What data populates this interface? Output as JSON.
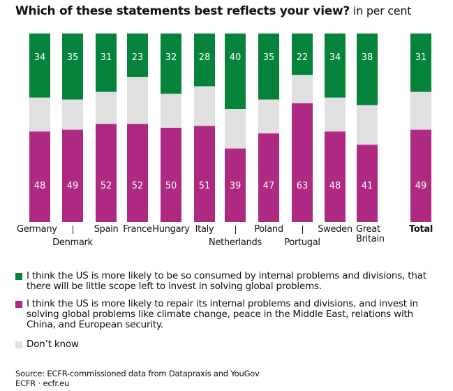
{
  "chart_data": {
    "type": "bar",
    "stacked": true,
    "orientation": "vertical",
    "title": "Which of these statements best reflects your view?",
    "subtitle": "in per cent",
    "categories": [
      "Germany",
      "Denmark",
      "Spain",
      "France",
      "Hungary",
      "Italy",
      "Netherlands",
      "Poland",
      "Portugal",
      "Sweden",
      "Great Britain",
      "Total"
    ],
    "category_label_lines": [
      [
        "Germany"
      ],
      [
        "Denmark"
      ],
      [
        "Spain"
      ],
      [
        "France"
      ],
      [
        "Hungary"
      ],
      [
        "Italy"
      ],
      [
        "Netherlands"
      ],
      [
        "Poland"
      ],
      [
        "Portugal"
      ],
      [
        "Sweden"
      ],
      [
        "Great",
        "Britain"
      ],
      [
        "Total"
      ]
    ],
    "series": [
      {
        "name": "I think the US is more likely to be so consumed by internal problems and divisions, that there will be little scope left to invest in solving global problems.",
        "color": "#05833A",
        "position": "top",
        "show_labels": true,
        "values": [
          34,
          35,
          31,
          23,
          32,
          28,
          40,
          35,
          22,
          34,
          38,
          31
        ]
      },
      {
        "name": "Don’t know",
        "color": "#E0E0E0",
        "position": "middle",
        "show_labels": false,
        "values": [
          18,
          16,
          17,
          25,
          18,
          21,
          21,
          18,
          15,
          18,
          21,
          20
        ]
      },
      {
        "name": "I think the US is more likely to repair its internal problems and divisions, and invest in solving global problems like climate change, peace in the Middle East, relations with China, and European security.",
        "color": "#AE2A82",
        "position": "bottom",
        "show_labels": true,
        "values": [
          48,
          49,
          52,
          52,
          50,
          51,
          39,
          47,
          63,
          48,
          41,
          49
        ]
      }
    ],
    "ylim": [
      0,
      100
    ],
    "xlabel": "",
    "ylabel": "",
    "grid": false,
    "legend_position": "bottom"
  },
  "title": {
    "main": "Which of these statements best reflects your view?",
    "unit": "in per cent"
  },
  "legend": [
    {
      "label": "I think the US is more likely to be so consumed by internal problems and divisions, that there will be little scope left to invest in solving global problems.",
      "color": "#05833A"
    },
    {
      "label": "I think the US is more likely to repair its internal problems and divisions, and invest in solving global problems like climate change, peace in the Middle East, relations with China, and European security.",
      "color": "#AE2A82"
    },
    {
      "label": "Don’t know",
      "color": "#E0E0E0"
    }
  ],
  "source": {
    "line1": "Source: ECFR-commissioned data from Datapraxis and YouGov",
    "line2": "ECFR · ecfr.eu"
  }
}
